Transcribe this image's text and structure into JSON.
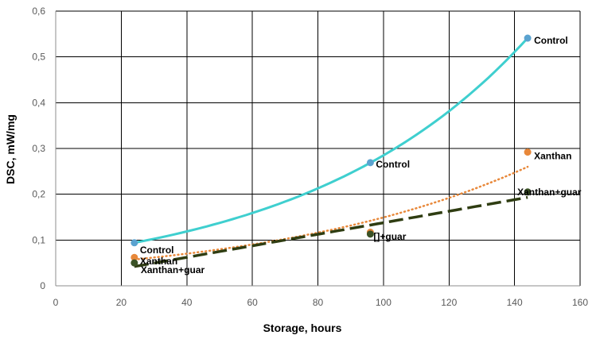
{
  "chart_data": {
    "type": "scatter",
    "title": "",
    "xlabel": "Storage, hours",
    "ylabel": "DSC, mW/mg",
    "xlim": [
      0,
      160
    ],
    "ylim": [
      0,
      0.6
    ],
    "x_ticks": [
      0,
      20,
      40,
      60,
      80,
      100,
      120,
      140,
      160
    ],
    "y_ticks": [
      0,
      0.1,
      0.2,
      0.3,
      0.4,
      0.5,
      0.6
    ],
    "x_tick_labels": [
      "0",
      "20",
      "40",
      "60",
      "80",
      "100",
      "120",
      "140",
      "160"
    ],
    "y_tick_labels": [
      "0",
      "0,1",
      "0,2",
      "0,3",
      "0,4",
      "0,5",
      "0,6"
    ],
    "grid": true,
    "series": [
      {
        "color": "#5ba3d0",
        "trend_color": "#3fcfcf",
        "trend_style": "solid",
        "trend": {
          "type": "exponential",
          "x_range": [
            24,
            144
          ]
        },
        "points": [
          {
            "x": 24,
            "y": 0.094,
            "label": "Control"
          },
          {
            "x": 96,
            "y": 0.269,
            "label": "Control"
          },
          {
            "x": 144,
            "y": 0.541,
            "label": "Control"
          }
        ]
      },
      {
        "color": "#e8883a",
        "trend_color": "#e8883a",
        "trend_style": "dotted",
        "trend": {
          "type": "exponential",
          "x_range": [
            24,
            144
          ]
        },
        "points": [
          {
            "x": 24,
            "y": 0.062,
            "label": "Xanthan"
          },
          {
            "x": 96,
            "y": 0.117,
            "label": ""
          },
          {
            "x": 144,
            "y": 0.292,
            "label": "Xanthan"
          }
        ]
      },
      {
        "color": "#3b5226",
        "trend_color": "#2f3d12",
        "trend_style": "dashed",
        "trend": {
          "type": "linear",
          "x_range": [
            24,
            144
          ]
        },
        "points": [
          {
            "x": 24,
            "y": 0.05,
            "label": "Xanthan+guar"
          },
          {
            "x": 96,
            "y": 0.113,
            "label": "[]+guar"
          },
          {
            "x": 144,
            "y": 0.205,
            "label": "Xanthan+guar"
          }
        ]
      }
    ]
  }
}
